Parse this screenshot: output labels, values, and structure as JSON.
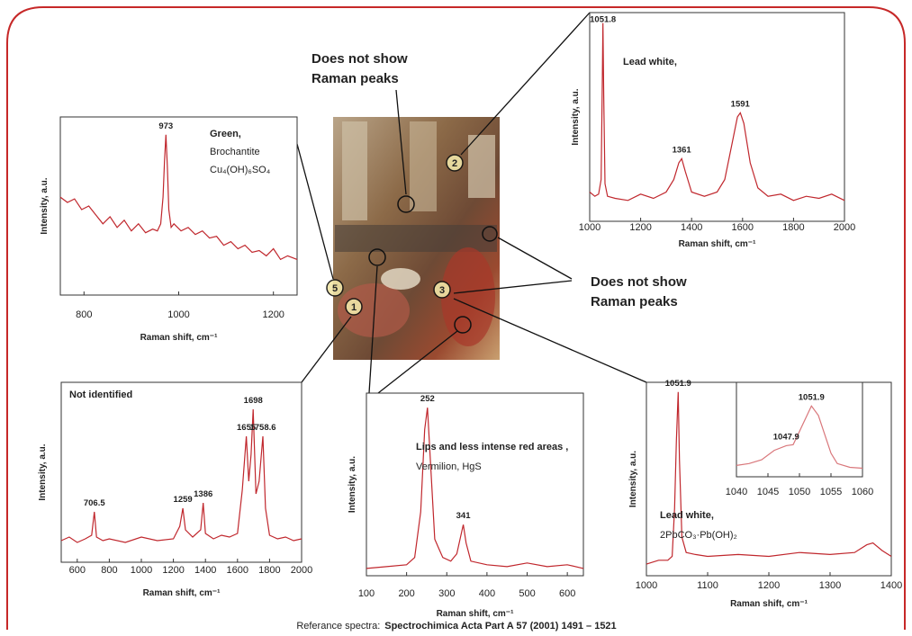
{
  "chart_data": [
    {
      "type": "line",
      "color": "#c0272d",
      "x": [
        750,
        765,
        780,
        795,
        810,
        825,
        840,
        855,
        870,
        885,
        900,
        915,
        930,
        945,
        955,
        962,
        967,
        970,
        973,
        976,
        979,
        984,
        990,
        1005,
        1020,
        1035,
        1050,
        1065,
        1080,
        1095,
        1110,
        1125,
        1140,
        1155,
        1170,
        1185,
        1200,
        1215,
        1230,
        1250
      ],
      "values": [
        55,
        52,
        54,
        48,
        50,
        45,
        40,
        44,
        38,
        42,
        36,
        40,
        35,
        37,
        36,
        40,
        55,
        75,
        90,
        72,
        48,
        38,
        40,
        36,
        38,
        34,
        36,
        32,
        33,
        28,
        30,
        26,
        28,
        24,
        25,
        22,
        26,
        20,
        22,
        20
      ],
      "xlim": [
        750,
        1250
      ],
      "ylim": [
        0,
        100
      ],
      "xticks": [
        800,
        1000,
        1200
      ],
      "xlabel": "Raman shift, cm⁻¹",
      "ylabel": "Intensity, a.u.",
      "peaks": [
        973
      ],
      "notes": [
        "Green,",
        "Brochantite",
        "Cu₄(OH)₆SO₄"
      ]
    },
    {
      "type": "line",
      "color": "#c0272d",
      "x": [
        1000,
        1020,
        1035,
        1045,
        1050,
        1052,
        1055,
        1060,
        1070,
        1100,
        1150,
        1200,
        1250,
        1300,
        1330,
        1350,
        1361,
        1375,
        1400,
        1450,
        1500,
        1530,
        1560,
        1580,
        1591,
        1605,
        1630,
        1660,
        1700,
        1750,
        1800,
        1850,
        1900,
        1950,
        2000
      ],
      "values": [
        14,
        12,
        13,
        20,
        70,
        95,
        60,
        18,
        12,
        11,
        10,
        13,
        11,
        14,
        20,
        28,
        30,
        24,
        14,
        12,
        14,
        20,
        38,
        50,
        52,
        47,
        28,
        16,
        12,
        13,
        10,
        12,
        11,
        13,
        10
      ],
      "xlim": [
        1000,
        2000
      ],
      "ylim": [
        0,
        100
      ],
      "xticks": [
        1000,
        1200,
        1400,
        1600,
        1800,
        2000
      ],
      "xlabel": "Raman shift, cm⁻¹",
      "ylabel": "Intensity, a.u.",
      "peaks": [
        1051.8,
        1361,
        1591
      ],
      "notes": [
        "Lead white,"
      ]
    },
    {
      "type": "line",
      "color": "#c0272d",
      "x": [
        500,
        550,
        600,
        650,
        690,
        706.5,
        720,
        760,
        800,
        900,
        1000,
        1100,
        1200,
        1240,
        1259,
        1275,
        1320,
        1370,
        1386,
        1400,
        1450,
        1500,
        1550,
        1600,
        1630,
        1655,
        1670,
        1685,
        1698,
        1715,
        1735,
        1758.6,
        1775,
        1800,
        1850,
        1900,
        1950,
        2000
      ],
      "values": [
        12,
        14,
        11,
        13,
        15,
        28,
        14,
        12,
        13,
        11,
        14,
        12,
        13,
        20,
        30,
        18,
        14,
        18,
        33,
        16,
        13,
        15,
        14,
        16,
        40,
        70,
        45,
        60,
        85,
        38,
        45,
        70,
        30,
        15,
        13,
        14,
        12,
        13
      ],
      "xlim": [
        500,
        2000
      ],
      "ylim": [
        0,
        100
      ],
      "xticks": [
        600,
        800,
        1000,
        1200,
        1400,
        1600,
        1800,
        2000
      ],
      "xlabel": "Raman shift, cm⁻¹",
      "ylabel": "Intensity, a.u.",
      "peaks": [
        706.5,
        1259,
        1386,
        1655,
        1698,
        1758.6
      ],
      "notes": [
        "Not identified"
      ]
    },
    {
      "type": "line",
      "color": "#c0272d",
      "x": [
        100,
        150,
        200,
        220,
        235,
        245,
        252,
        260,
        270,
        280,
        290,
        310,
        325,
        335,
        341,
        348,
        360,
        400,
        450,
        500,
        550,
        600,
        640
      ],
      "values": [
        4,
        5,
        6,
        10,
        35,
        80,
        92,
        60,
        20,
        15,
        10,
        8,
        12,
        22,
        28,
        18,
        8,
        6,
        5,
        7,
        5,
        6,
        4
      ],
      "xlim": [
        100,
        640
      ],
      "ylim": [
        0,
        100
      ],
      "xticks": [
        100,
        200,
        300,
        400,
        500,
        600
      ],
      "xlabel": "Raman shift, cm⁻¹",
      "ylabel": "Intensity, a.u.",
      "peaks": [
        252,
        341
      ],
      "notes": [
        "Lips and less intense red areas ,",
        "Vermilion, HgS"
      ]
    },
    {
      "type": "line",
      "color": "#c0272d",
      "x": [
        1000,
        1020,
        1035,
        1042,
        1046,
        1049,
        1051.9,
        1054,
        1058,
        1065,
        1080,
        1100,
        1150,
        1200,
        1250,
        1300,
        1340,
        1360,
        1370,
        1385,
        1400
      ],
      "values": [
        6,
        8,
        8,
        10,
        35,
        70,
        95,
        60,
        20,
        12,
        11,
        10,
        11,
        10,
        12,
        11,
        12,
        16,
        17,
        13,
        10
      ],
      "xlim": [
        1000,
        1400
      ],
      "ylim": [
        0,
        100
      ],
      "xticks": [
        1000,
        1100,
        1200,
        1300,
        1400
      ],
      "xlabel": "Raman shift, cm⁻¹",
      "ylabel": "Intensity, a.u.",
      "peaks": [
        1051.9
      ],
      "notes": [
        "Lead white,",
        "2PbCO₃·Pb(OH)₂"
      ],
      "inset": {
        "type": "line",
        "color": "#d9777b",
        "x": [
          1040,
          1042,
          1044,
          1046,
          1047.9,
          1049,
          1050,
          1051.9,
          1053,
          1054,
          1055,
          1056,
          1058,
          1060
        ],
        "values": [
          12,
          14,
          18,
          28,
          33,
          34,
          48,
          75,
          65,
          45,
          25,
          14,
          10,
          9
        ],
        "xlim": [
          1040,
          1060
        ],
        "ylim": [
          0,
          100
        ],
        "xticks": [
          1040,
          1045,
          1050,
          1055,
          1060
        ],
        "peaks": [
          1047.9,
          1051.9
        ]
      }
    }
  ],
  "sample_points": [
    "5",
    "1",
    "2",
    "3"
  ],
  "annotations": [
    [
      "Does not show",
      "Raman peaks"
    ],
    [
      "Does not show",
      "Raman peaks"
    ]
  ],
  "footer": {
    "prefix": "Referance spectra:",
    "source": "Spectrochimica Acta Part A 57 (2001) 1491 – 1521"
  }
}
